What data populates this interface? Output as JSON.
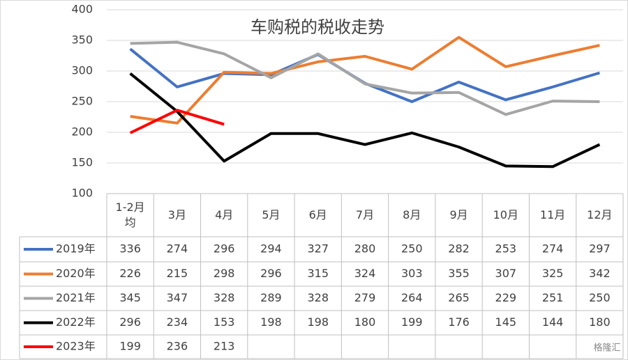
{
  "chart_data": {
    "type": "line",
    "title": "车购税的税收走势",
    "categories": [
      "1-2月均",
      "3月",
      "4月",
      "5月",
      "6月",
      "7月",
      "8月",
      "9月",
      "10月",
      "11月",
      "12月"
    ],
    "series": [
      {
        "name": "2019年",
        "color": "#4472c4",
        "values": [
          336,
          274,
          296,
          294,
          327,
          280,
          250,
          282,
          253,
          274,
          297
        ]
      },
      {
        "name": "2020年",
        "color": "#ed7d31",
        "values": [
          226,
          215,
          298,
          296,
          315,
          324,
          303,
          355,
          307,
          325,
          342
        ]
      },
      {
        "name": "2021年",
        "color": "#a5a5a5",
        "values": [
          345,
          347,
          328,
          289,
          328,
          279,
          264,
          265,
          229,
          251,
          250
        ]
      },
      {
        "name": "2022年",
        "color": "#000000",
        "values": [
          296,
          234,
          153,
          198,
          198,
          180,
          199,
          176,
          145,
          144,
          180
        ]
      },
      {
        "name": "2023年",
        "color": "#ff0000",
        "values": [
          199,
          236,
          213,
          null,
          null,
          null,
          null,
          null,
          null,
          null,
          null
        ]
      }
    ],
    "ylim": [
      100,
      400
    ],
    "yticks": [
      100,
      150,
      200,
      250,
      300,
      350,
      400
    ],
    "grid": true,
    "watermark": "格隆汇"
  }
}
